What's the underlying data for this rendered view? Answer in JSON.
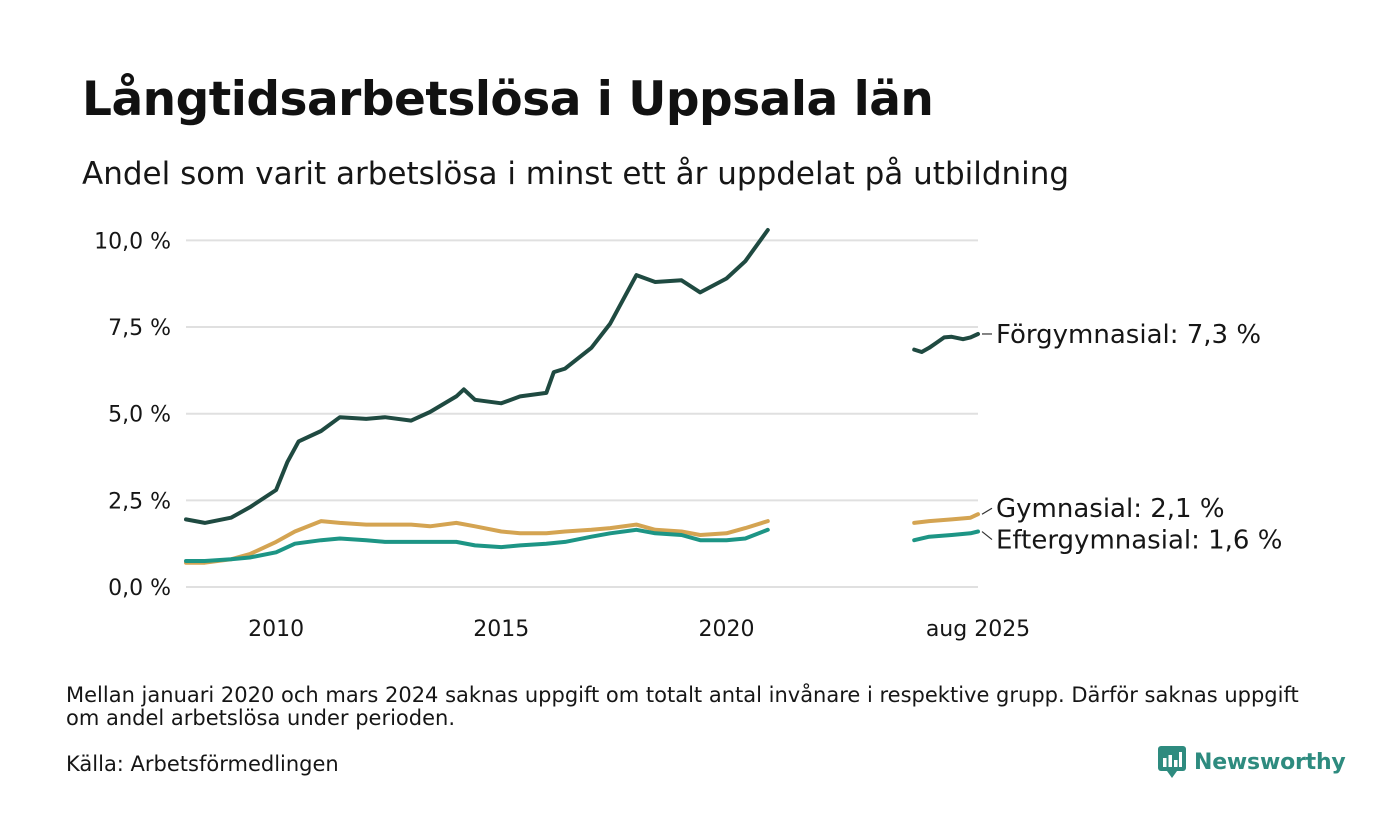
{
  "title": "Långtidsarbetslösa i Uppsala län",
  "subtitle": "Andel som varit arbetslösa i minst ett år uppdelat på utbildning",
  "note": "Mellan januari 2020 och mars 2024 saknas uppgift om totalt antal invånare i respektive grupp. Därför saknas uppgift om andel arbetslösa under perioden.",
  "source": "Källa: Arbetsförmedlingen",
  "brand": {
    "name": "Newsworthy",
    "icon": "newsworthy-logo-icon",
    "color": "#2e8b7f"
  },
  "chart_data": {
    "type": "line",
    "x_unit": "month",
    "x_range": [
      "2008-01",
      "2025-08"
    ],
    "y_range": [
      0,
      10.3
    ],
    "y_ticks": [
      0,
      2.5,
      5,
      7.5,
      10
    ],
    "y_tick_labels": [
      "0,0 %",
      "2,5 %",
      "5,0 %",
      "7,5 %",
      "10,0 %"
    ],
    "x_ticks": [
      "2010-01",
      "2015-01",
      "2020-01",
      "2025-08"
    ],
    "x_tick_labels": [
      "2010",
      "2015",
      "2020",
      "aug 2025"
    ],
    "grid": "horizontal",
    "gap": [
      "2020-12",
      "2024-03"
    ],
    "series": [
      {
        "name": "Förgymnasial",
        "label": "Förgymnasial: 7,3 %",
        "color": "#1f4a41",
        "segments": [
          [
            [
              "2008-01",
              1.95
            ],
            [
              "2008-06",
              1.85
            ],
            [
              "2009-01",
              2.0
            ],
            [
              "2009-06",
              2.3
            ],
            [
              "2010-01",
              2.8
            ],
            [
              "2010-04",
              3.6
            ],
            [
              "2010-07",
              4.2
            ],
            [
              "2011-01",
              4.5
            ],
            [
              "2011-06",
              4.9
            ],
            [
              "2012-01",
              4.85
            ],
            [
              "2012-06",
              4.9
            ],
            [
              "2013-01",
              4.8
            ],
            [
              "2013-06",
              5.05
            ],
            [
              "2014-01",
              5.5
            ],
            [
              "2014-03",
              5.7
            ],
            [
              "2014-06",
              5.4
            ],
            [
              "2015-01",
              5.3
            ],
            [
              "2015-06",
              5.5
            ],
            [
              "2016-01",
              5.6
            ],
            [
              "2016-03",
              6.2
            ],
            [
              "2016-06",
              6.3
            ],
            [
              "2017-01",
              6.9
            ],
            [
              "2017-06",
              7.6
            ],
            [
              "2018-01",
              9.0
            ],
            [
              "2018-06",
              8.8
            ],
            [
              "2019-01",
              8.85
            ],
            [
              "2019-06",
              8.5
            ],
            [
              "2020-01",
              8.9
            ],
            [
              "2020-06",
              9.4
            ],
            [
              "2020-12",
              10.3
            ]
          ],
          [
            [
              "2024-03",
              6.85
            ],
            [
              "2024-05",
              6.78
            ],
            [
              "2024-07",
              6.9
            ],
            [
              "2024-09",
              7.05
            ],
            [
              "2024-11",
              7.2
            ],
            [
              "2025-01",
              7.22
            ],
            [
              "2025-04",
              7.15
            ],
            [
              "2025-06",
              7.2
            ],
            [
              "2025-08",
              7.3
            ]
          ]
        ]
      },
      {
        "name": "Gymnasial",
        "label": "Gymnasial: 2,1 %",
        "color": "#d4a452",
        "segments": [
          [
            [
              "2008-01",
              0.7
            ],
            [
              "2008-06",
              0.7
            ],
            [
              "2009-01",
              0.8
            ],
            [
              "2009-06",
              0.95
            ],
            [
              "2010-01",
              1.3
            ],
            [
              "2010-06",
              1.6
            ],
            [
              "2011-01",
              1.9
            ],
            [
              "2011-06",
              1.85
            ],
            [
              "2012-01",
              1.8
            ],
            [
              "2013-01",
              1.8
            ],
            [
              "2013-06",
              1.75
            ],
            [
              "2014-01",
              1.85
            ],
            [
              "2014-06",
              1.75
            ],
            [
              "2015-01",
              1.6
            ],
            [
              "2015-06",
              1.55
            ],
            [
              "2016-01",
              1.55
            ],
            [
              "2016-06",
              1.6
            ],
            [
              "2017-01",
              1.65
            ],
            [
              "2017-06",
              1.7
            ],
            [
              "2018-01",
              1.8
            ],
            [
              "2018-06",
              1.65
            ],
            [
              "2019-01",
              1.6
            ],
            [
              "2019-06",
              1.5
            ],
            [
              "2020-01",
              1.55
            ],
            [
              "2020-06",
              1.7
            ],
            [
              "2020-12",
              1.9
            ]
          ],
          [
            [
              "2024-03",
              1.85
            ],
            [
              "2024-07",
              1.9
            ],
            [
              "2025-01",
              1.95
            ],
            [
              "2025-06",
              2.0
            ],
            [
              "2025-08",
              2.1
            ]
          ]
        ]
      },
      {
        "name": "Eftergymnasial",
        "label": "Eftergymnasial: 1,6 %",
        "color": "#1d9585",
        "segments": [
          [
            [
              "2008-01",
              0.75
            ],
            [
              "2008-06",
              0.75
            ],
            [
              "2009-01",
              0.8
            ],
            [
              "2009-06",
              0.85
            ],
            [
              "2010-01",
              1.0
            ],
            [
              "2010-06",
              1.25
            ],
            [
              "2011-01",
              1.35
            ],
            [
              "2011-06",
              1.4
            ],
            [
              "2012-01",
              1.35
            ],
            [
              "2012-06",
              1.3
            ],
            [
              "2013-01",
              1.3
            ],
            [
              "2013-06",
              1.3
            ],
            [
              "2014-01",
              1.3
            ],
            [
              "2014-06",
              1.2
            ],
            [
              "2015-01",
              1.15
            ],
            [
              "2015-06",
              1.2
            ],
            [
              "2016-01",
              1.25
            ],
            [
              "2016-06",
              1.3
            ],
            [
              "2017-01",
              1.45
            ],
            [
              "2017-06",
              1.55
            ],
            [
              "2018-01",
              1.65
            ],
            [
              "2018-06",
              1.55
            ],
            [
              "2019-01",
              1.5
            ],
            [
              "2019-06",
              1.35
            ],
            [
              "2020-01",
              1.35
            ],
            [
              "2020-06",
              1.4
            ],
            [
              "2020-12",
              1.65
            ]
          ],
          [
            [
              "2024-03",
              1.35
            ],
            [
              "2024-07",
              1.45
            ],
            [
              "2025-01",
              1.5
            ],
            [
              "2025-06",
              1.55
            ],
            [
              "2025-08",
              1.6
            ]
          ]
        ]
      }
    ]
  }
}
